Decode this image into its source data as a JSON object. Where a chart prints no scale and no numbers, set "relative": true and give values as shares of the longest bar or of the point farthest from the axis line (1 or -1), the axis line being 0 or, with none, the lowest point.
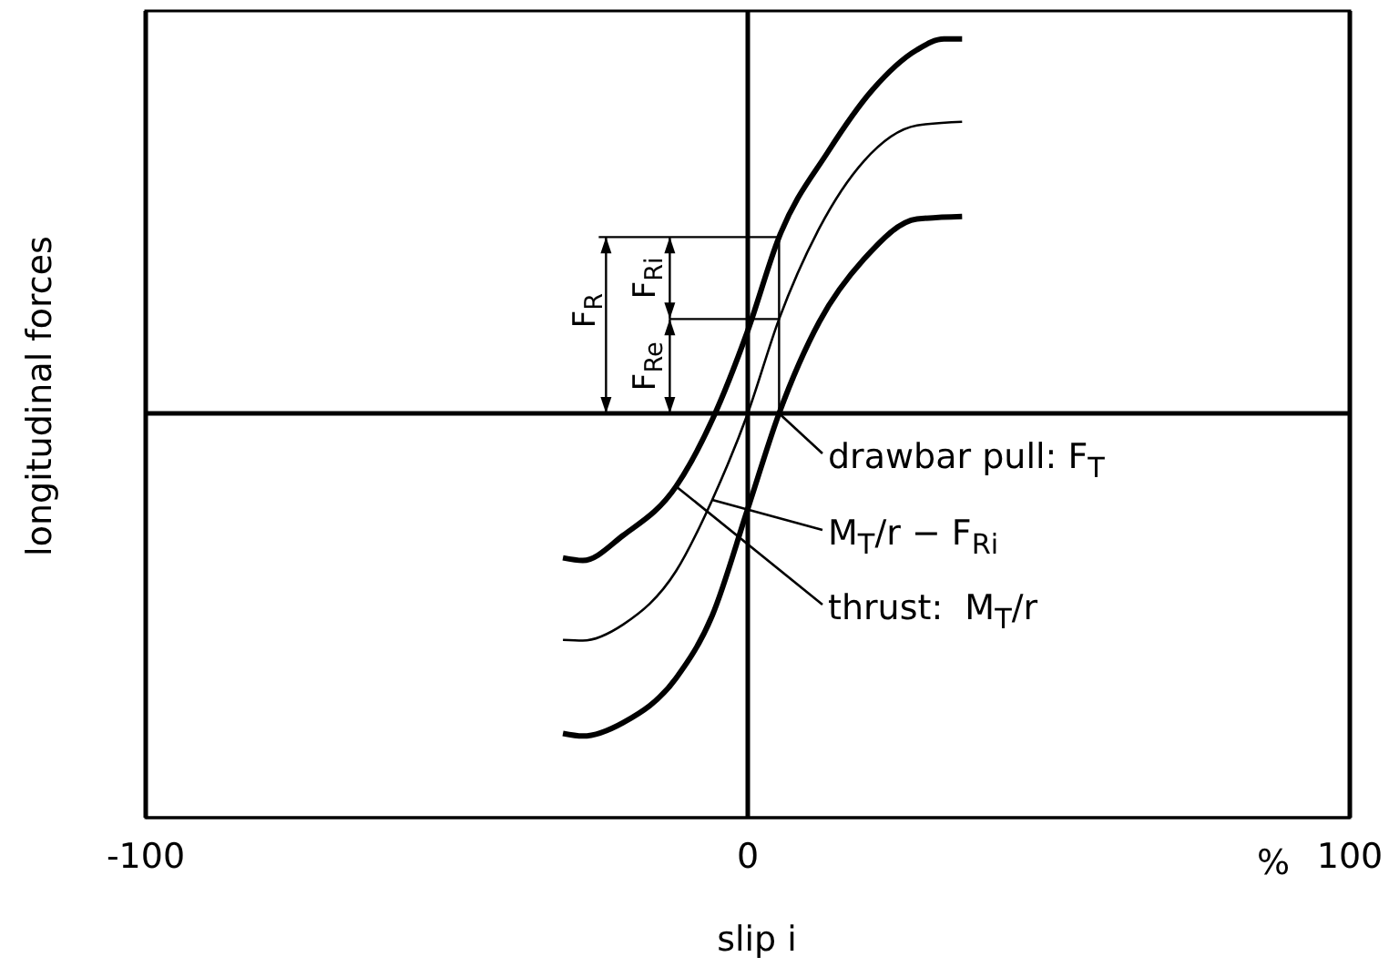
{
  "chart_data": {
    "type": "line",
    "relative": true,
    "xlabel": "slip i",
    "ylabel": "longitudinal forces",
    "xlim": [
      -100,
      100
    ],
    "xticks": [
      -100,
      0,
      100
    ],
    "grid": "x",
    "marker": "none",
    "line_style": "solid",
    "annotations": [
      "%",
      "F$_{R}$",
      "F$_{Re}$",
      "F$_{Ri}$"
    ],
    "series": [
      {
        "name": "thrust:  M$_{T}$/r",
        "color": "#000000",
        "x": [
          -30.7,
          -27.4,
          -20.7,
          -11.9,
          -5.9,
          0,
          5.2,
          13.3,
          20.7,
          28.1,
          32.6,
          35.6
        ],
        "values": [
          -0.386,
          -0.393,
          -0.326,
          -0.195,
          -0.017,
          0.221,
          0.471,
          0.698,
          0.864,
          0.971,
          1,
          1
        ]
      },
      {
        "name": "M$_{T}$/r − F$_{Ri}$",
        "color": "#000000",
        "x": [
          -30.7,
          -27.4,
          -20.7,
          -11.9,
          -5.9,
          0,
          5.2,
          11.9,
          19.3,
          28.1,
          35.6
        ],
        "values": [
          -0.605,
          -0.607,
          -0.564,
          -0.421,
          -0.231,
          0,
          0.252,
          0.495,
          0.674,
          0.769,
          0.779
        ]
      },
      {
        "name": "drawbar pull: F$_{T}$",
        "color": "#000000",
        "x": [
          -30.7,
          -27.4,
          -20.7,
          -11.9,
          -5.9,
          0,
          5.2,
          11.9,
          19.3,
          28.1,
          35.6
        ],
        "values": [
          -0.855,
          -0.862,
          -0.826,
          -0.707,
          -0.54,
          -0.255,
          0,
          0.245,
          0.412,
          0.519,
          0.526
        ]
      }
    ]
  }
}
